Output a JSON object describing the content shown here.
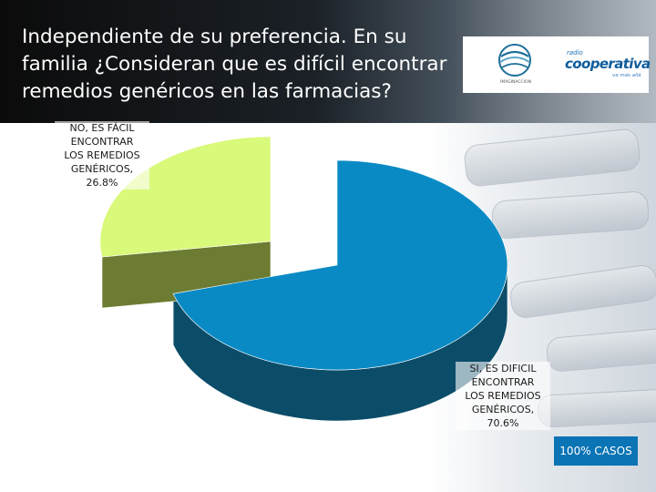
{
  "title": "Independiente de su preferencia. En su familia ¿Consideran que es difícil encontrar remedios genéricos en las farmacias?",
  "logos": {
    "left_caption": "IMAGINACCION",
    "radio_small": "radio",
    "radio_name": "cooperativa",
    "radio_tagline": "va más allá"
  },
  "footer_badge": "100% CASOS",
  "colors": {
    "si_top": "#0a8ac4",
    "si_side": "#0b4d69",
    "no_top": "#d9f97a",
    "no_side": "#6c7c32"
  },
  "chart_data": {
    "type": "pie",
    "title": "",
    "slices": [
      {
        "label": "SI, ES DIFICIL ENCONTRAR LOS REMEDIOS GENÉRICOS, 70.6%",
        "value": 70.6
      },
      {
        "label": "NO, ES FÁCIL ENCONTRAR LOS REMEDIOS GENÉRICOS, 26.8%",
        "value": 26.8
      }
    ],
    "labels_text": {
      "no": [
        "NO, ES FÁCIL",
        "ENCONTRAR",
        "LOS REMEDIOS",
        "GENÉRICOS,",
        "26.8%"
      ],
      "si": [
        "SI, ES DIFICIL",
        "ENCONTRAR",
        "LOS REMEDIOS",
        "GENÉRICOS,",
        "70.6%"
      ]
    }
  }
}
